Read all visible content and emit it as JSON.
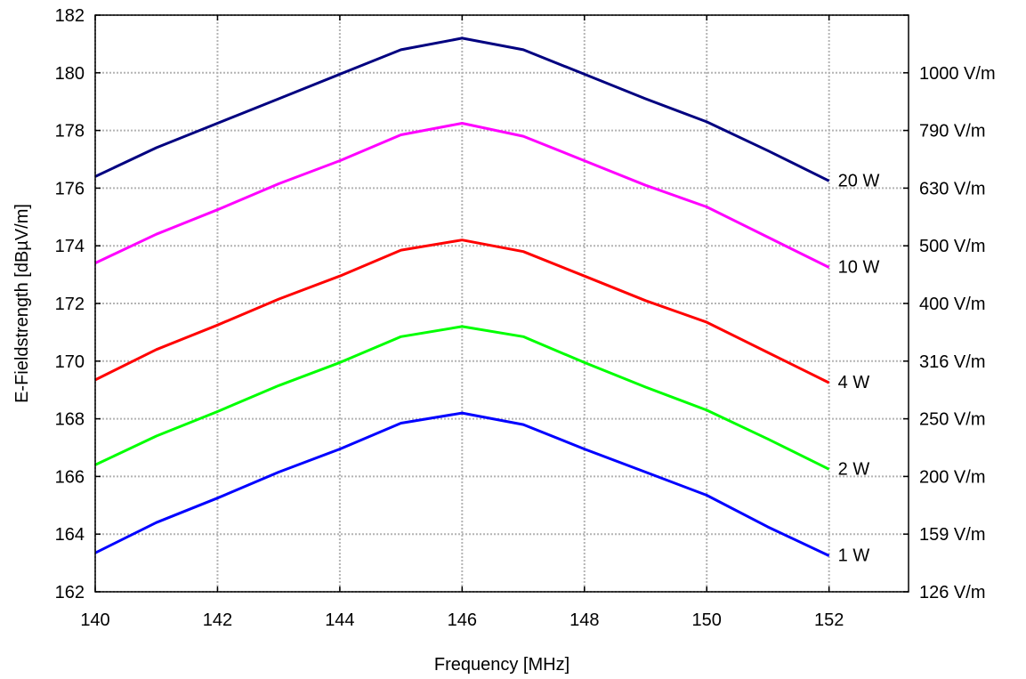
{
  "chart_data": {
    "type": "line",
    "title": "",
    "xlabel": "Frequency [MHz]",
    "ylabel": "E-Fieldstrength [dBµV/m]",
    "xlim": [
      140,
      153.3
    ],
    "ylim": [
      162,
      182
    ],
    "grid": true,
    "x": [
      140,
      141,
      142,
      143,
      144,
      145,
      146,
      147,
      148,
      149,
      150,
      151,
      152
    ],
    "x_ticks": [
      140,
      142,
      144,
      146,
      148,
      150,
      152
    ],
    "y_ticks": [
      162,
      164,
      166,
      168,
      170,
      172,
      174,
      176,
      178,
      180,
      182
    ],
    "y2_ticks": [
      {
        "value": 162,
        "label": "126 V/m"
      },
      {
        "value": 164,
        "label": "159 V/m"
      },
      {
        "value": 166,
        "label": "200 V/m"
      },
      {
        "value": 168,
        "label": "250 V/m"
      },
      {
        "value": 170,
        "label": "316 V/m"
      },
      {
        "value": 172,
        "label": "400 V/m"
      },
      {
        "value": 174,
        "label": "500 V/m"
      },
      {
        "value": 176,
        "label": "630 V/m"
      },
      {
        "value": 178,
        "label": "790 V/m"
      },
      {
        "value": 180,
        "label": "1000 V/m"
      }
    ],
    "series": [
      {
        "name": "20 W",
        "color": "#000080",
        "values": [
          176.4,
          177.4,
          178.25,
          179.1,
          179.95,
          180.8,
          181.2,
          180.8,
          179.95,
          179.1,
          178.3,
          177.3,
          176.25
        ]
      },
      {
        "name": "10 W",
        "color": "#ff00ff",
        "values": [
          173.4,
          174.4,
          175.25,
          176.15,
          176.95,
          177.85,
          178.25,
          177.8,
          176.95,
          176.1,
          175.35,
          174.3,
          173.25
        ]
      },
      {
        "name": "4 W",
        "color": "#ff0000",
        "values": [
          169.35,
          170.4,
          171.25,
          172.15,
          172.95,
          173.85,
          174.2,
          173.8,
          172.95,
          172.1,
          171.35,
          170.3,
          169.25
        ]
      },
      {
        "name": "2 W",
        "color": "#00ff00",
        "values": [
          166.4,
          167.4,
          168.25,
          169.15,
          169.95,
          170.85,
          171.2,
          170.85,
          169.95,
          169.1,
          168.3,
          167.3,
          166.25
        ]
      },
      {
        "name": "1 W",
        "color": "#0000ff",
        "values": [
          163.35,
          164.4,
          165.25,
          166.15,
          166.95,
          167.85,
          168.2,
          167.8,
          166.95,
          166.15,
          165.35,
          164.25,
          163.25
        ]
      }
    ]
  }
}
